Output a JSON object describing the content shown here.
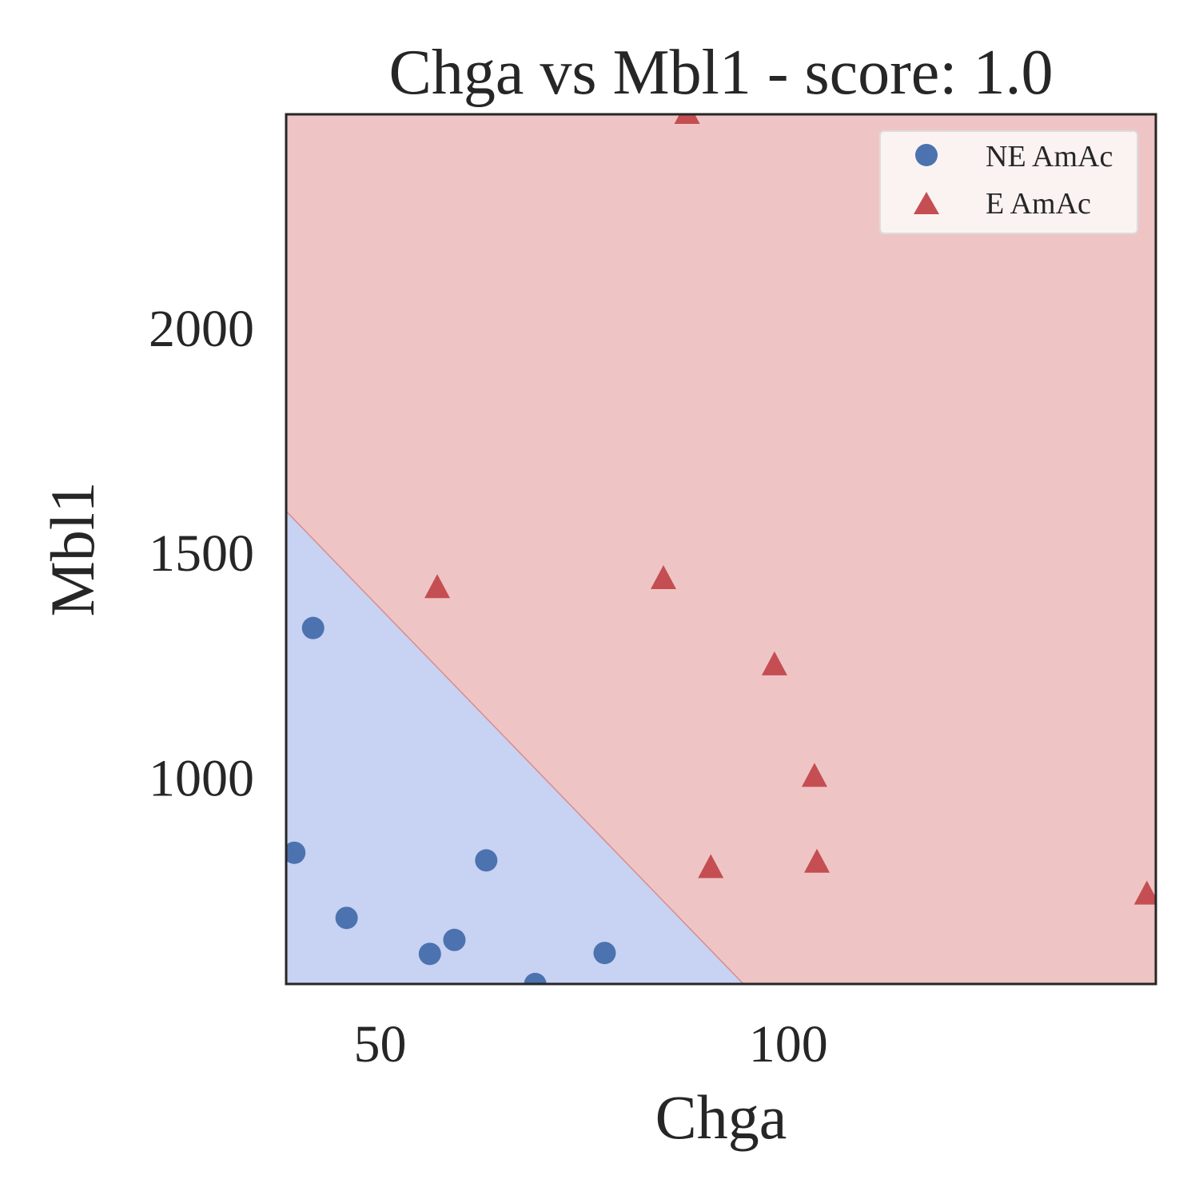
{
  "chart_data": {
    "type": "scatter",
    "title": "Chga vs Mbl1 - score: 1.0",
    "xlabel": "Chga",
    "ylabel": "Mbl1",
    "xlim": [
      38.5,
      145
    ],
    "ylim": [
      540,
      2475
    ],
    "x_ticks": [
      50,
      100
    ],
    "x_tick_labels": [
      "50",
      "100"
    ],
    "y_ticks": [
      1000,
      1500,
      2000
    ],
    "y_tick_labels": [
      "1000",
      "1500",
      "2000"
    ],
    "grid": false,
    "legend_position": "upper right",
    "decision_boundary": {
      "description": "linear classifier regions",
      "line_points": [
        [
          38.5,
          1592
        ],
        [
          94.5,
          540
        ]
      ],
      "below_region_class": "NE AmAc",
      "above_region_class": "E AmAc",
      "below_color": "#c8d2f2",
      "above_color": "#eec5c4"
    },
    "series": [
      {
        "name": "NE AmAc",
        "marker": "circle",
        "color": "#4c72b0",
        "points": [
          {
            "x": 41.8,
            "y": 1332
          },
          {
            "x": 39.5,
            "y": 832
          },
          {
            "x": 45.9,
            "y": 687
          },
          {
            "x": 56.1,
            "y": 607
          },
          {
            "x": 59.1,
            "y": 638
          },
          {
            "x": 63.0,
            "y": 815
          },
          {
            "x": 69.0,
            "y": 540
          },
          {
            "x": 77.5,
            "y": 609
          }
        ]
      },
      {
        "name": "E AmAc",
        "marker": "triangle",
        "color": "#c44e52",
        "points": [
          {
            "x": 87.6,
            "y": 2475
          },
          {
            "x": 57.0,
            "y": 1420
          },
          {
            "x": 84.7,
            "y": 1440
          },
          {
            "x": 98.3,
            "y": 1248
          },
          {
            "x": 103.2,
            "y": 1000
          },
          {
            "x": 90.5,
            "y": 797
          },
          {
            "x": 103.5,
            "y": 809
          },
          {
            "x": 143.9,
            "y": 738
          }
        ]
      }
    ],
    "colors": {
      "axes_edge": "#262626",
      "text": "#262626",
      "legend_bg": "#fbf3f2",
      "legend_border": "#dcdcdc"
    }
  }
}
